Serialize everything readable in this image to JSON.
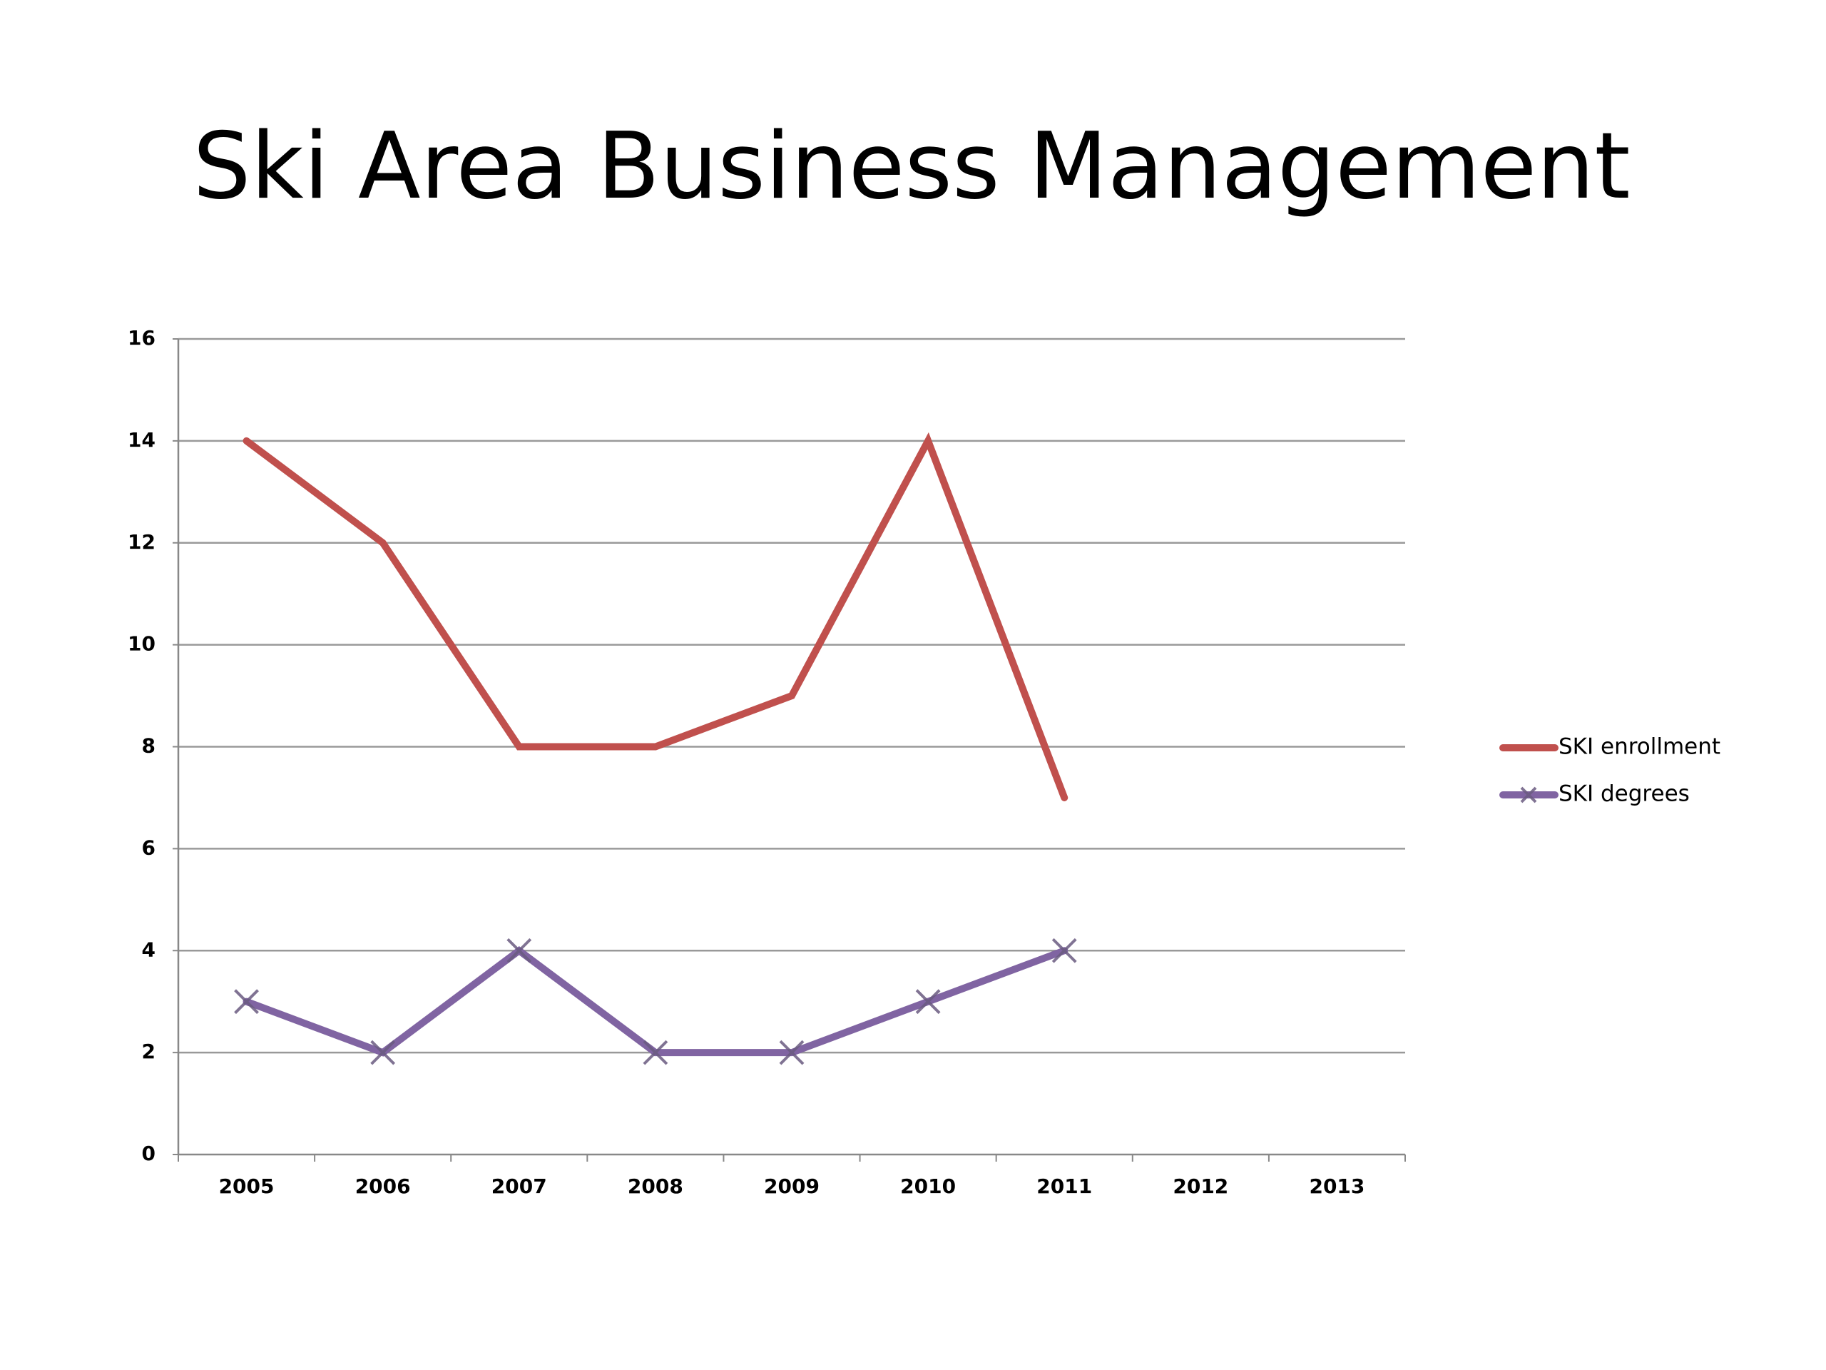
{
  "chart_data": {
    "type": "line",
    "title": "Ski Area Business Management",
    "categories": [
      "2005",
      "2006",
      "2007",
      "2008",
      "2009",
      "2010",
      "2011",
      "2012",
      "2013"
    ],
    "series": [
      {
        "name": "SKI enrollment",
        "color": "#c0504d",
        "marker": "none",
        "values": [
          14,
          12,
          8,
          8,
          9,
          14,
          7,
          null,
          null
        ]
      },
      {
        "name": "SKI degrees",
        "color": "#8064a2",
        "marker": "x",
        "values": [
          3,
          2,
          4,
          2,
          2,
          3,
          4,
          null,
          null
        ]
      }
    ],
    "ylim": [
      0,
      16
    ],
    "yticks": [
      0,
      2,
      4,
      6,
      8,
      10,
      12,
      14,
      16
    ],
    "grid": true,
    "legend": "right"
  }
}
